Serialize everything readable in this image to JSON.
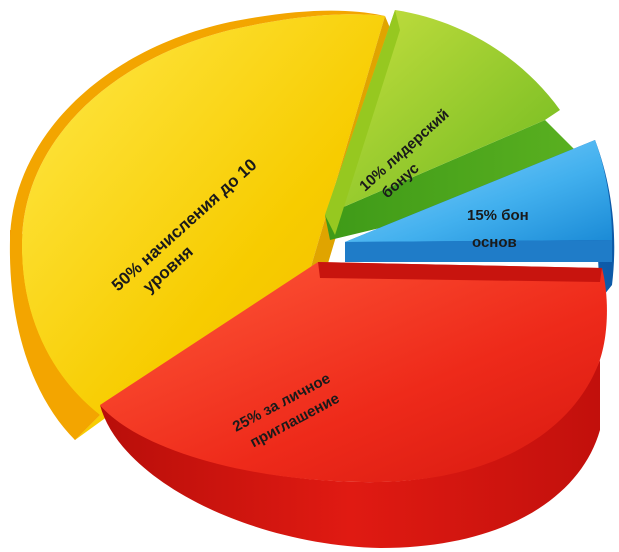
{
  "chart_data": {
    "type": "pie",
    "title": "",
    "slices": [
      {
        "label_line1": "50% начисления до 10",
        "label_line2": "уровня",
        "value": 50,
        "color": "#f5c400"
      },
      {
        "label_line1": "10% лидерский",
        "label_line2": "бонус",
        "value": 10,
        "color": "#8cc41a"
      },
      {
        "label_line1": "15% бон",
        "label_line2": "основ",
        "value": 15,
        "color": "#1a8fd8"
      },
      {
        "label_line1": "25% за личное",
        "label_line2": "приглашение",
        "value": 25,
        "color": "#e8231a"
      }
    ],
    "style": "3d-exploded"
  }
}
